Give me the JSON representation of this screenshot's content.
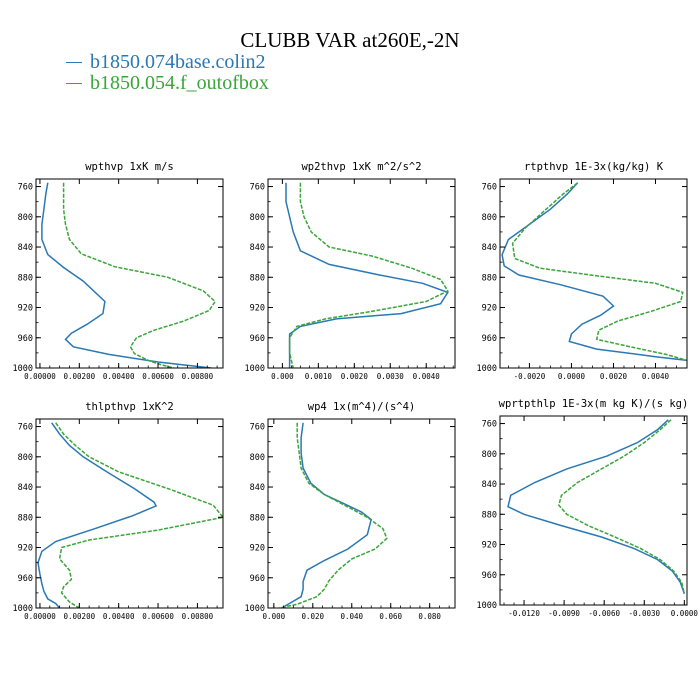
{
  "title": "CLUBB VAR at260E,-2N",
  "legend": [
    {
      "name": "b1850.074base.colin2",
      "color": "#2a78b4"
    },
    {
      "name": "b1850.054.f_outofbox",
      "color": "#3aa53a"
    }
  ],
  "chart_data": [
    {
      "type": "line",
      "title": "wpthvp  1xK m/s",
      "ylim": [
        1000,
        750
      ],
      "yticks": [
        760,
        800,
        840,
        880,
        920,
        960,
        1000
      ],
      "xlim": [
        -0.0002,
        0.0093
      ],
      "xticks": [
        0.0,
        0.002,
        0.004,
        0.006,
        0.008
      ],
      "xtick_labels": [
        "0.00000",
        "0.00200",
        "0.00400",
        "0.00600",
        "0.00800"
      ],
      "series": [
        {
          "name": "b1850.074base.colin2",
          "x": [
            0.0004,
            0.0003,
            0.0002,
            0.0001,
            0.0001,
            0.0004,
            0.0012,
            0.0022,
            0.0033,
            0.0032,
            0.0024,
            0.0016,
            0.0013,
            0.0017,
            0.0035,
            0.006,
            0.0087
          ],
          "y": [
            755,
            770,
            790,
            810,
            830,
            850,
            867,
            885,
            912,
            928,
            942,
            954,
            962,
            972,
            982,
            992,
            1000
          ]
        },
        {
          "name": "b1850.054.f_outofbox",
          "x": [
            0.0012,
            0.0012,
            0.0012,
            0.0013,
            0.0015,
            0.0021,
            0.0038,
            0.0065,
            0.0083,
            0.0089,
            0.0086,
            0.0073,
            0.0058,
            0.0049,
            0.0046,
            0.0048,
            0.0055,
            0.0062,
            0.0068
          ],
          "y": [
            755,
            770,
            790,
            810,
            830,
            849,
            866,
            880,
            898,
            912,
            924,
            938,
            950,
            960,
            972,
            981,
            990,
            996,
            1000
          ]
        }
      ]
    },
    {
      "type": "line",
      "title": "wp2thvp  1xK m^2/s^2",
      "ylim": [
        1000,
        750
      ],
      "yticks": [
        760,
        800,
        840,
        880,
        920,
        960,
        1000
      ],
      "xlim": [
        -0.0004,
        0.0048
      ],
      "xticks": [
        0.0,
        0.001,
        0.002,
        0.003,
        0.004
      ],
      "xtick_labels": [
        "0.000",
        "0.0010",
        "0.0020",
        "0.0030",
        "0.0040"
      ],
      "series": [
        {
          "name": "b1850.074base.colin2",
          "x": [
            0.0001,
            0.0001,
            0.0002,
            0.0003,
            0.0005,
            0.0013,
            0.0027,
            0.0039,
            0.0046,
            0.0044,
            0.0033,
            0.0015,
            0.0005,
            0.0002,
            0.0002,
            0.0002,
            0.0002
          ],
          "y": [
            755,
            780,
            800,
            820,
            845,
            863,
            877,
            888,
            900,
            915,
            928,
            935,
            945,
            955,
            970,
            985,
            1000
          ]
        },
        {
          "name": "b1850.054.f_outofbox",
          "x": [
            0.0005,
            0.0005,
            0.0006,
            0.0008,
            0.0013,
            0.0025,
            0.0036,
            0.0044,
            0.0046,
            0.004,
            0.0025,
            0.0012,
            0.0004,
            0.0002,
            0.0002,
            0.0003
          ],
          "y": [
            755,
            780,
            800,
            820,
            840,
            852,
            868,
            883,
            898,
            912,
            925,
            935,
            945,
            960,
            980,
            1000
          ]
        }
      ]
    },
    {
      "type": "line",
      "title": "rtpthvp  1E-3x(kg/kg) K",
      "ylim": [
        1000,
        750
      ],
      "yticks": [
        760,
        800,
        840,
        880,
        920,
        960,
        1000
      ],
      "xlim": [
        -0.0034,
        0.0055
      ],
      "xticks": [
        -0.002,
        0.0,
        0.002,
        0.004
      ],
      "xtick_labels": [
        "-0.0020",
        "0.0000",
        "0.0020",
        "0.0040"
      ],
      "series": [
        {
          "name": "b1850.074base.colin2",
          "x": [
            0.0003,
            -0.0002,
            -0.001,
            -0.002,
            -0.003,
            -0.0033,
            -0.0032,
            -0.0025,
            -0.0005,
            0.0015,
            0.002,
            0.0014,
            0.0005,
            0.0,
            -0.0001,
            0.0012,
            0.004,
            0.0055
          ],
          "y": [
            755,
            770,
            790,
            810,
            830,
            850,
            865,
            877,
            890,
            905,
            918,
            930,
            942,
            955,
            965,
            975,
            985,
            990
          ]
        },
        {
          "name": "b1850.054.f_outofbox",
          "x": [
            0.0003,
            -0.0004,
            -0.0012,
            -0.0022,
            -0.0028,
            -0.0027,
            -0.0015,
            0.0012,
            0.004,
            0.0053,
            0.0052,
            0.0038,
            0.0022,
            0.0013,
            0.0012,
            0.0028,
            0.0045,
            0.0055
          ],
          "y": [
            755,
            770,
            790,
            815,
            835,
            855,
            868,
            878,
            888,
            900,
            912,
            925,
            938,
            950,
            962,
            972,
            982,
            990
          ]
        }
      ]
    },
    {
      "type": "line",
      "title": "thlpthvp  1xK^2",
      "ylim": [
        1000,
        750
      ],
      "yticks": [
        760,
        800,
        840,
        880,
        920,
        960,
        1000
      ],
      "xlim": [
        -0.0002,
        0.0093
      ],
      "xticks": [
        0.0,
        0.002,
        0.004,
        0.006,
        0.008
      ],
      "xtick_labels": [
        "0.00000",
        "0.00200",
        "0.00400",
        "0.00600",
        "0.00800"
      ],
      "series": [
        {
          "name": "b1850.074base.colin2",
          "x": [
            0.0006,
            0.001,
            0.0015,
            0.0022,
            0.0034,
            0.0048,
            0.0058,
            0.0059,
            0.0047,
            0.0028,
            0.0008,
            0.0001,
            -0.0001,
            0.0,
            0.0001,
            0.0002,
            0.0004,
            0.0008,
            0.001
          ],
          "y": [
            755,
            770,
            785,
            800,
            820,
            842,
            860,
            865,
            878,
            895,
            912,
            925,
            940,
            955,
            968,
            978,
            988,
            994,
            1000
          ]
        },
        {
          "name": "b1850.054.f_outofbox",
          "x": [
            0.0008,
            0.0012,
            0.0018,
            0.0025,
            0.004,
            0.0065,
            0.0088,
            0.0093,
            0.006,
            0.0025,
            0.0011,
            0.001,
            0.0015,
            0.0016,
            0.0012,
            0.0011,
            0.0015,
            0.002
          ],
          "y": [
            755,
            770,
            785,
            800,
            820,
            842,
            864,
            880,
            897,
            910,
            920,
            935,
            950,
            962,
            972,
            980,
            992,
            1000
          ]
        }
      ]
    },
    {
      "type": "line",
      "title": "wp4  1x(m^4)/(s^4)",
      "ylim": [
        1000,
        750
      ],
      "yticks": [
        760,
        800,
        840,
        880,
        920,
        960,
        1000
      ],
      "xlim": [
        -0.003,
        0.093
      ],
      "xticks": [
        0.0,
        0.02,
        0.04,
        0.06,
        0.08
      ],
      "xtick_labels": [
        "0.000",
        "0.020",
        "0.040",
        "0.060",
        "0.080"
      ],
      "series": [
        {
          "name": "b1850.074base.colin2",
          "x": [
            0.015,
            0.014,
            0.014,
            0.015,
            0.019,
            0.026,
            0.036,
            0.045,
            0.05,
            0.048,
            0.038,
            0.026,
            0.017,
            0.015,
            0.015,
            0.014,
            0.008,
            0.004
          ],
          "y": [
            755,
            775,
            795,
            815,
            835,
            850,
            862,
            873,
            883,
            903,
            922,
            937,
            950,
            965,
            975,
            985,
            994,
            1000
          ]
        },
        {
          "name": "b1850.054.f_outofbox",
          "x": [
            0.012,
            0.012,
            0.013,
            0.014,
            0.018,
            0.026,
            0.037,
            0.048,
            0.056,
            0.058,
            0.052,
            0.04,
            0.033,
            0.028,
            0.026,
            0.022,
            0.012,
            0.003
          ],
          "y": [
            755,
            775,
            795,
            815,
            835,
            850,
            865,
            880,
            895,
            908,
            922,
            935,
            950,
            965,
            975,
            985,
            995,
            1000
          ]
        }
      ]
    },
    {
      "type": "line",
      "title": "wprtpthlp  1E-3x(m kg K)/(s kg)",
      "ylim": [
        1000,
        750
      ],
      "yticks": [
        760,
        800,
        840,
        880,
        920,
        960,
        1000
      ],
      "xlim": [
        -0.0138,
        0.0002
      ],
      "xticks": [
        -0.012,
        -0.009,
        -0.006,
        -0.003,
        0.0
      ],
      "xtick_labels": [
        "-0.0120",
        "-0.0090",
        "-0.0060",
        "-0.0030",
        "0.0000"
      ],
      "series": [
        {
          "name": "b1850.074base.colin2",
          "x": [
            -0.0012,
            -0.002,
            -0.0035,
            -0.0058,
            -0.0088,
            -0.0112,
            -0.013,
            -0.0132,
            -0.012,
            -0.0092,
            -0.0062,
            -0.0038,
            -0.002,
            -0.0009,
            -0.0003,
            0.0
          ],
          "y": [
            755,
            768,
            785,
            803,
            820,
            838,
            855,
            870,
            880,
            895,
            910,
            925,
            940,
            955,
            970,
            985
          ]
        },
        {
          "name": "b1850.054.f_outofbox",
          "x": [
            -0.001,
            -0.0018,
            -0.003,
            -0.0045,
            -0.0062,
            -0.008,
            -0.0092,
            -0.0094,
            -0.0088,
            -0.0072,
            -0.0052,
            -0.0033,
            -0.0018,
            -0.0008,
            -0.0002,
            0.0
          ],
          "y": [
            755,
            768,
            785,
            803,
            820,
            838,
            855,
            868,
            880,
            895,
            910,
            925,
            940,
            955,
            970,
            985
          ]
        }
      ]
    }
  ]
}
